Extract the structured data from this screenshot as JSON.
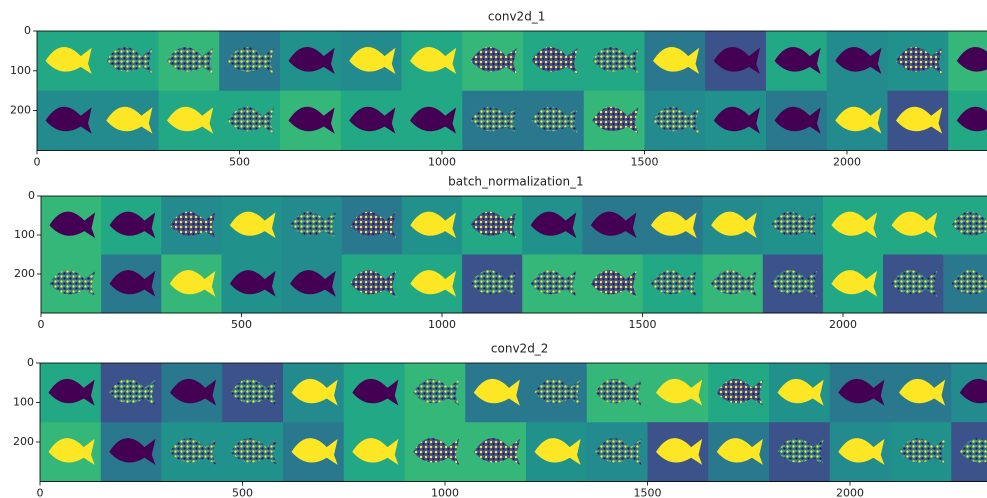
{
  "chart_data": [
    {
      "type": "image",
      "title": "conv2d_1",
      "xlim": [
        0,
        2400
      ],
      "ylim": [
        300,
        0
      ],
      "xticks": [
        0,
        500,
        1000,
        1500,
        2000
      ],
      "yticks": [
        0,
        100,
        200
      ]
    },
    {
      "type": "image",
      "title": "batch_normalization_1",
      "xlim": [
        0,
        2400
      ],
      "ylim": [
        300,
        0
      ],
      "xticks": [
        0,
        500,
        1000,
        1500,
        2000
      ],
      "yticks": [
        0,
        100,
        200
      ]
    },
    {
      "type": "image",
      "title": "conv2d_2",
      "xlim": [
        0,
        2400
      ],
      "ylim": [
        300,
        0
      ],
      "xticks": [
        0,
        500,
        1000,
        1500,
        2000
      ],
      "yticks": [
        0,
        100,
        200
      ]
    }
  ]
}
